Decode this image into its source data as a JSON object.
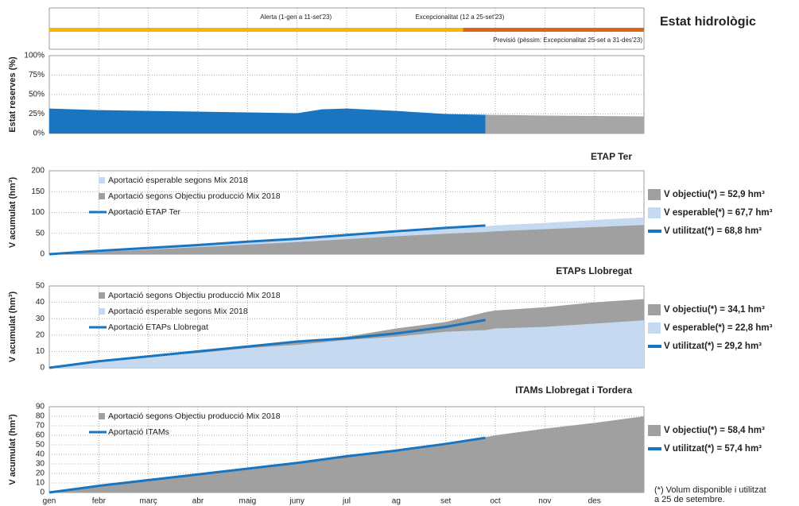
{
  "chart_data": [
    {
      "type": "timeline",
      "title": "Estat hidrològic",
      "xlim": [
        0,
        12
      ],
      "xticks": [
        0,
        1,
        2,
        3,
        4,
        5,
        6,
        7,
        8,
        9,
        10,
        11,
        12
      ],
      "segments": [
        {
          "label": "Alerta (1-gen a 11-set'23)",
          "color": "#f5b800",
          "start": 0,
          "end": 8.35
        },
        {
          "label": "Excepcionalitat (12 a 25-set'23)",
          "color": "#e0631a",
          "start": 8.35,
          "end": 12
        }
      ],
      "note": "Previsió (pèssim: Excepcionalitat 25-set a 31-des'23)"
    },
    {
      "type": "area",
      "ylabel": "Estat reserves (%)",
      "xlim": [
        0,
        12
      ],
      "xticks": [
        0,
        1,
        2,
        3,
        4,
        5,
        6,
        7,
        8,
        9,
        10,
        11,
        12
      ],
      "ylim": [
        0,
        100
      ],
      "yticks": [
        {
          "value": 0,
          "label": "0%"
        },
        {
          "value": 25,
          "label": "25%"
        },
        {
          "value": 50,
          "label": "50%"
        },
        {
          "value": 75,
          "label": "75%"
        },
        {
          "value": 100,
          "label": "100%"
        }
      ],
      "grid": true,
      "series": [
        {
          "kind": "area",
          "color": "#1a75c0",
          "x": [
            0,
            1,
            2,
            3,
            4,
            5,
            5.5,
            6,
            7,
            8,
            8.8
          ],
          "values": [
            32,
            30,
            29,
            28,
            27,
            26,
            31,
            32,
            29,
            25,
            24
          ]
        },
        {
          "kind": "area",
          "color": "#a6a6a6",
          "x": [
            8.8,
            10,
            11,
            12
          ],
          "values": [
            24,
            23,
            22.5,
            22
          ]
        }
      ]
    },
    {
      "type": "area",
      "title": "ETAP Ter",
      "ylabel": "V acumulat (hm³)",
      "xlim": [
        0,
        12
      ],
      "xticks": [
        0,
        1,
        2,
        3,
        4,
        5,
        6,
        7,
        8,
        9,
        10,
        11,
        12
      ],
      "ylim": [
        0,
        200
      ],
      "yticks": [
        0,
        50,
        100,
        150,
        200
      ],
      "grid": true,
      "series": [
        {
          "name": "Aportació esperable segons Mix 2018",
          "kind": "area",
          "color": "#c5d9f1",
          "x": [
            0,
            1,
            2,
            3,
            4,
            5,
            6,
            7,
            8,
            8.8,
            9,
            10,
            11,
            12
          ],
          "values": [
            0,
            7,
            14,
            21,
            28,
            36,
            44,
            52,
            60,
            67,
            69,
            75,
            82,
            88
          ]
        },
        {
          "name": "Aportació segons Objectiu producció Mix 2018",
          "kind": "area",
          "color": "#a0a0a0",
          "x": [
            0,
            1,
            2,
            3,
            4,
            5,
            6,
            7,
            8,
            8.8,
            9,
            10,
            11,
            12
          ],
          "values": [
            0,
            5,
            11,
            17,
            23,
            29,
            36,
            43,
            49,
            53,
            55,
            60,
            65,
            70
          ]
        },
        {
          "name": "Aportació ETAP Ter",
          "kind": "line",
          "color": "#1a75c0",
          "x": [
            0,
            1,
            2,
            3,
            4,
            5,
            6,
            7,
            8,
            8.8
          ],
          "values": [
            0,
            8,
            15,
            22,
            30,
            37,
            46,
            55,
            63,
            68.8
          ]
        }
      ],
      "summary": [
        {
          "text": "V objectiu(*) = 52,9 hm³",
          "color": "#a0a0a0",
          "kind": "area"
        },
        {
          "text": "V esperable(*) = 67,7 hm³",
          "color": "#c5d9f1",
          "kind": "area"
        },
        {
          "text": "V  utilitzat(*) = 68,8 hm³",
          "color": "#1a75c0",
          "kind": "line"
        }
      ]
    },
    {
      "type": "area",
      "title": "ETAPs Llobregat",
      "ylabel": "V acumulat (hm³)",
      "xlim": [
        0,
        12
      ],
      "xticks": [
        0,
        1,
        2,
        3,
        4,
        5,
        6,
        7,
        8,
        9,
        10,
        11,
        12
      ],
      "ylim": [
        0,
        50
      ],
      "yticks": [
        0,
        10,
        20,
        30,
        40,
        50
      ],
      "grid": true,
      "series": [
        {
          "name": "Aportació segons Objectiu producció Mix 2018",
          "kind": "area",
          "color": "#a0a0a0",
          "x": [
            0,
            1,
            2,
            3,
            4,
            5,
            6,
            7,
            8,
            8.8,
            9,
            10,
            11,
            12
          ],
          "values": [
            0,
            4,
            7,
            10,
            13,
            16,
            19,
            24,
            28,
            34,
            35,
            37,
            40,
            42
          ]
        },
        {
          "name": "Aportació esperable segons Mix 2018",
          "kind": "area",
          "color": "#c5d9f1",
          "x": [
            0,
            1,
            2,
            3,
            4,
            5,
            6,
            7,
            8,
            8.8,
            9,
            10,
            11,
            12
          ],
          "values": [
            0,
            4,
            7,
            9,
            12,
            14,
            17,
            19,
            22,
            23,
            24,
            25,
            27,
            29
          ]
        },
        {
          "name": "Aportació ETAPs Llobregat",
          "kind": "line",
          "color": "#1a75c0",
          "x": [
            0,
            1,
            2,
            3,
            4,
            5,
            6,
            7,
            8,
            8.8
          ],
          "values": [
            0,
            4,
            7,
            10,
            13,
            16,
            18,
            21,
            25,
            29.2
          ]
        }
      ],
      "summary": [
        {
          "text": "V objectiu(*) = 34,1 hm³",
          "color": "#a0a0a0",
          "kind": "area"
        },
        {
          "text": "V esperable(*) = 22,8 hm³",
          "color": "#c5d9f1",
          "kind": "area"
        },
        {
          "text": "V  utilitzat(*) = 29,2 hm³",
          "color": "#1a75c0",
          "kind": "line"
        }
      ]
    },
    {
      "type": "area",
      "title": "ITAMs Llobregat i Tordera",
      "ylabel": "V acumulat (hm³)",
      "xlim": [
        0,
        12
      ],
      "xticks": [
        {
          "value": 0,
          "label": "gen"
        },
        {
          "value": 1,
          "label": "febr"
        },
        {
          "value": 2,
          "label": "març"
        },
        {
          "value": 3,
          "label": "abr"
        },
        {
          "value": 4,
          "label": "maig"
        },
        {
          "value": 5,
          "label": "juny"
        },
        {
          "value": 6,
          "label": "jul"
        },
        {
          "value": 7,
          "label": "ag"
        },
        {
          "value": 8,
          "label": "set"
        },
        {
          "value": 9,
          "label": "oct"
        },
        {
          "value": 10,
          "label": "nov"
        },
        {
          "value": 11,
          "label": "des"
        }
      ],
      "ylim": [
        0,
        90
      ],
      "yticks": [
        0,
        10,
        20,
        30,
        40,
        50,
        60,
        70,
        80,
        90
      ],
      "grid": true,
      "series": [
        {
          "name": "Aportació segons Objectiu producció Mix 2018",
          "kind": "area",
          "color": "#a0a0a0",
          "x": [
            0,
            1,
            2,
            3,
            4,
            5,
            6,
            7,
            8,
            8.8,
            9,
            10,
            11,
            12
          ],
          "values": [
            0,
            7,
            13,
            19,
            25,
            31,
            38,
            45,
            52,
            58,
            60,
            67,
            73,
            80
          ]
        },
        {
          "name": "Aportació ITAMs",
          "kind": "line",
          "color": "#1a75c0",
          "x": [
            0,
            1,
            2,
            3,
            4,
            5,
            6,
            7,
            8,
            8.8
          ],
          "values": [
            0,
            7,
            13,
            19,
            25,
            31,
            38,
            44,
            51,
            57.4
          ]
        }
      ],
      "summary": [
        {
          "text": "V objectiu(*) = 58,4 hm³",
          "color": "#a0a0a0",
          "kind": "area"
        },
        {
          "text": "V  utilitzat(*) = 57,4 hm³",
          "color": "#1a75c0",
          "kind": "line"
        }
      ],
      "footnote": [
        "(*) Volum disponible i utilitzat",
        "a 25 de setembre."
      ]
    }
  ]
}
